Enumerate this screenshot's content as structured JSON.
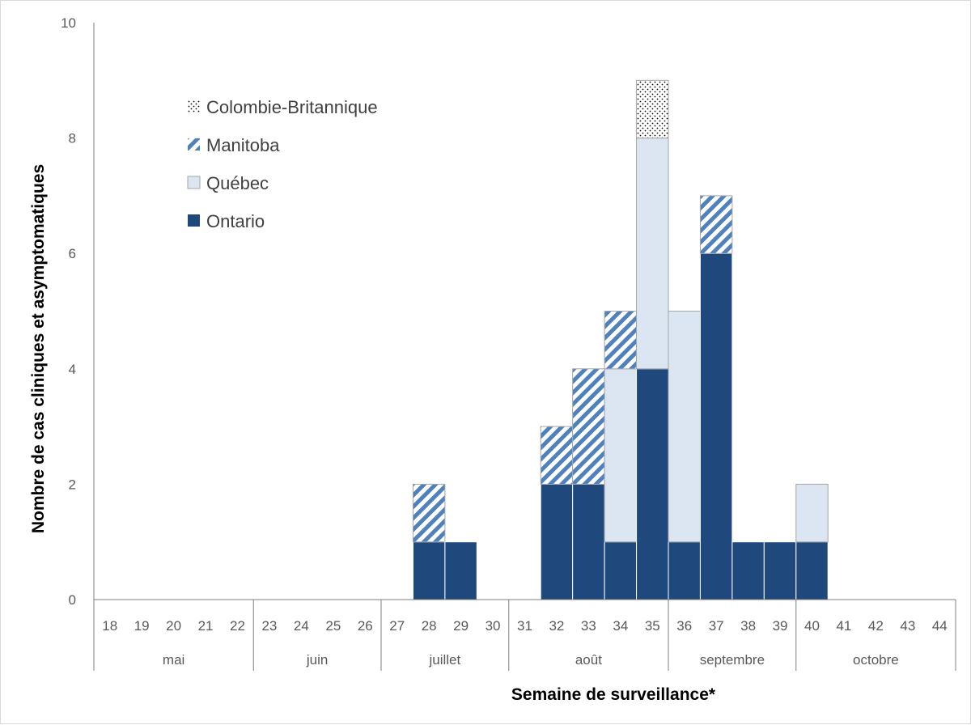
{
  "chart_data": {
    "type": "bar",
    "stacked": true,
    "xlabel": "Semaine de surveillance*",
    "ylabel": "Nombre de cas cliniques et asymptomatiques",
    "ylim": [
      0,
      10
    ],
    "yticks": [
      "0",
      "2",
      "4",
      "6",
      "8",
      "10"
    ],
    "categories": [
      "18",
      "19",
      "20",
      "21",
      "22",
      "23",
      "24",
      "25",
      "26",
      "27",
      "28",
      "29",
      "30",
      "31",
      "32",
      "33",
      "34",
      "35",
      "36",
      "37",
      "38",
      "39",
      "40",
      "41",
      "42",
      "43",
      "44"
    ],
    "months": [
      {
        "label": "mai",
        "weeks": [
          "18",
          "19",
          "20",
          "21",
          "22"
        ]
      },
      {
        "label": "juin",
        "weeks": [
          "23",
          "24",
          "25",
          "26"
        ]
      },
      {
        "label": "juillet",
        "weeks": [
          "27",
          "28",
          "29",
          "30"
        ]
      },
      {
        "label": "août",
        "weeks": [
          "31",
          "32",
          "33",
          "34",
          "35"
        ]
      },
      {
        "label": "septembre",
        "weeks": [
          "36",
          "37",
          "38",
          "39"
        ]
      },
      {
        "label": "octobre",
        "weeks": [
          "40",
          "41",
          "42",
          "43",
          "44"
        ]
      }
    ],
    "series": [
      {
        "name": "Ontario",
        "fill": "solid",
        "color": "#1f497d",
        "values": [
          0,
          0,
          0,
          0,
          0,
          0,
          0,
          0,
          0,
          0,
          1,
          1,
          0,
          0,
          2,
          2,
          1,
          4,
          1,
          6,
          1,
          1,
          1,
          0,
          0,
          0,
          0
        ]
      },
      {
        "name": "Québec",
        "fill": "solid",
        "color": "#dce6f2",
        "values": [
          0,
          0,
          0,
          0,
          0,
          0,
          0,
          0,
          0,
          0,
          0,
          0,
          0,
          0,
          0,
          0,
          3,
          4,
          4,
          0,
          0,
          0,
          1,
          0,
          0,
          0,
          0
        ]
      },
      {
        "name": "Manitoba",
        "fill": "diagonal-stripes",
        "color": "#4f81bd",
        "values": [
          0,
          0,
          0,
          0,
          0,
          0,
          0,
          0,
          0,
          0,
          1,
          0,
          0,
          0,
          1,
          2,
          1,
          0,
          0,
          1,
          0,
          0,
          0,
          0,
          0,
          0,
          0
        ]
      },
      {
        "name": "Colombie-Britannique",
        "fill": "dots",
        "color": "#000000",
        "values": [
          0,
          0,
          0,
          0,
          0,
          0,
          0,
          0,
          0,
          0,
          0,
          0,
          0,
          0,
          0,
          0,
          0,
          1,
          0,
          0,
          0,
          0,
          0,
          0,
          0,
          0,
          0
        ]
      }
    ],
    "legend": {
      "placement": "top-left",
      "order": [
        "Colombie-Britannique",
        "Manitoba",
        "Québec",
        "Ontario"
      ]
    },
    "grid": false
  }
}
